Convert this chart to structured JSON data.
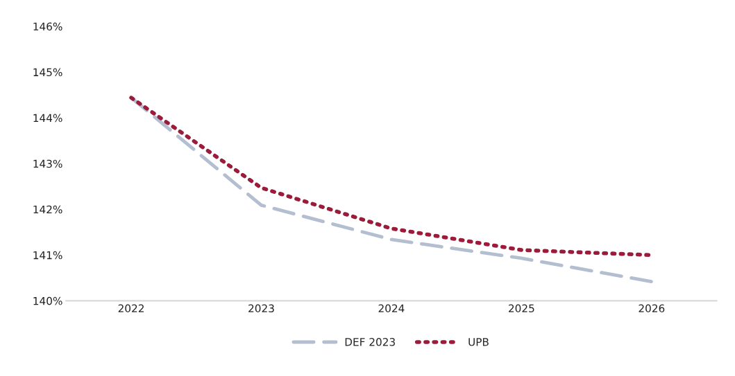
{
  "chart_data": {
    "type": "line",
    "categories": [
      "2022",
      "2023",
      "2024",
      "2025",
      "2026"
    ],
    "series": [
      {
        "name": "DEF 2023",
        "color": "#b3bed0",
        "line_style": "dashed",
        "values": [
          144.44,
          142.09,
          141.34,
          140.93,
          140.42
        ]
      },
      {
        "name": "UPB",
        "color": "#9b1b3b",
        "line_style": "dotted",
        "values": [
          144.44,
          142.47,
          141.58,
          141.11,
          141.0
        ]
      }
    ],
    "ylim": [
      140,
      146
    ],
    "yticks": [
      {
        "value": 140,
        "label": "140%"
      },
      {
        "value": 141,
        "label": "141%"
      },
      {
        "value": 142,
        "label": "142%"
      },
      {
        "value": 143,
        "label": "143%"
      },
      {
        "value": 144,
        "label": "144%"
      },
      {
        "value": 145,
        "label": "145%"
      },
      {
        "value": 146,
        "label": "146%"
      }
    ],
    "grid": false,
    "legend": "bottom",
    "marker": "none"
  }
}
